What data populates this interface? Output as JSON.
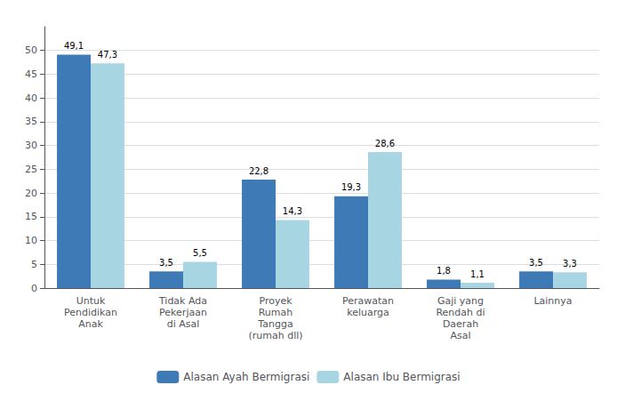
{
  "chart_data": {
    "type": "bar",
    "categories": [
      "Untuk\nPendidikan\nAnak",
      "Tidak Ada\nPekerjaan\ndi Asal",
      "Proyek\nRumah\nTangga\n(rumah dll)",
      "Perawatan\nkeluarga",
      "Gaji yang\nRendah di\nDaerah\nAsal",
      "Lainnya"
    ],
    "series": [
      {
        "name": "Alasan Ayah Bermigrasi",
        "color": "#3E7BB6",
        "values": [
          49.1,
          3.5,
          22.8,
          19.3,
          1.8,
          3.5
        ],
        "value_labels": [
          "49,1",
          "3,5",
          "22,8",
          "19,3",
          "1,8",
          "3,5"
        ]
      },
      {
        "name": "Alasan Ibu Bermigrasi",
        "color": "#A8D5E2",
        "values": [
          47.3,
          5.5,
          14.3,
          28.6,
          1.1,
          3.3
        ],
        "value_labels": [
          "47,3",
          "5,5",
          "14,3",
          "28,6",
          "1,1",
          "3,3"
        ]
      }
    ],
    "ylim": [
      0,
      55
    ],
    "yticks": [
      0,
      5,
      10,
      15,
      20,
      25,
      30,
      35,
      40,
      45,
      50
    ],
    "grid": true,
    "data_labels": true,
    "legend": "bottom"
  }
}
